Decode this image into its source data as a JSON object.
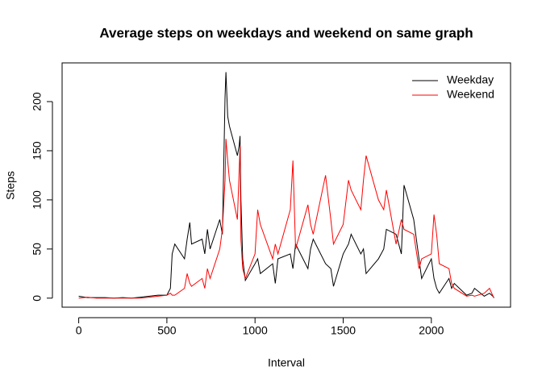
{
  "chart_data": {
    "type": "line",
    "title": "Average steps on weekdays and weekend on same graph",
    "x_label": "Interval",
    "y_label": "Steps",
    "x": [
      0,
      50,
      100,
      150,
      200,
      250,
      300,
      350,
      400,
      450,
      500,
      520,
      530,
      545,
      600,
      615,
      630,
      640,
      700,
      715,
      730,
      745,
      800,
      815,
      830,
      835,
      845,
      855,
      900,
      910,
      915,
      920,
      930,
      945,
      1000,
      1015,
      1030,
      1100,
      1115,
      1130,
      1200,
      1215,
      1230,
      1300,
      1315,
      1330,
      1400,
      1430,
      1445,
      1500,
      1530,
      1545,
      1600,
      1615,
      1630,
      1700,
      1730,
      1745,
      1800,
      1830,
      1845,
      1900,
      1930,
      1945,
      2000,
      2015,
      2030,
      2045,
      2100,
      2115,
      2130,
      2200,
      2230,
      2245,
      2300,
      2330,
      2355
    ],
    "series": [
      {
        "name": "Weekday",
        "color": "#000000",
        "values": [
          2,
          0.5,
          0.5,
          0.5,
          0,
          0.5,
          0,
          1,
          2,
          3,
          3,
          10,
          45,
          55,
          40,
          60,
          77,
          55,
          60,
          45,
          70,
          50,
          80,
          65,
          205,
          230,
          185,
          175,
          145,
          155,
          165,
          100,
          40,
          18,
          35,
          40,
          25,
          35,
          15,
          40,
          45,
          30,
          55,
          30,
          50,
          60,
          35,
          30,
          12,
          45,
          55,
          65,
          45,
          50,
          25,
          40,
          50,
          70,
          65,
          45,
          115,
          80,
          40,
          20,
          40,
          20,
          10,
          5,
          20,
          10,
          15,
          3,
          5,
          10,
          2,
          5,
          1
        ]
      },
      {
        "name": "Weekend",
        "color": "#ff0000",
        "values": [
          0,
          1,
          0,
          0,
          0,
          0,
          0,
          0,
          1,
          2,
          3,
          5,
          3,
          3,
          10,
          25,
          15,
          12,
          20,
          10,
          30,
          20,
          50,
          70,
          120,
          162,
          140,
          120,
          80,
          130,
          155,
          60,
          30,
          20,
          45,
          90,
          75,
          40,
          55,
          45,
          90,
          140,
          50,
          95,
          75,
          65,
          125,
          80,
          55,
          75,
          120,
          110,
          90,
          120,
          145,
          100,
          90,
          110,
          55,
          80,
          70,
          65,
          30,
          40,
          45,
          85,
          65,
          35,
          30,
          15,
          10,
          2,
          3,
          2,
          5,
          10,
          0
        ]
      }
    ],
    "xlim": [
      -94.2,
      2449.2
    ],
    "ylim": [
      -9.2,
      239.4
    ],
    "xticks": [
      0,
      500,
      1000,
      1500,
      2000
    ],
    "yticks": [
      0,
      50,
      100,
      150,
      200
    ],
    "legend": "topright"
  }
}
